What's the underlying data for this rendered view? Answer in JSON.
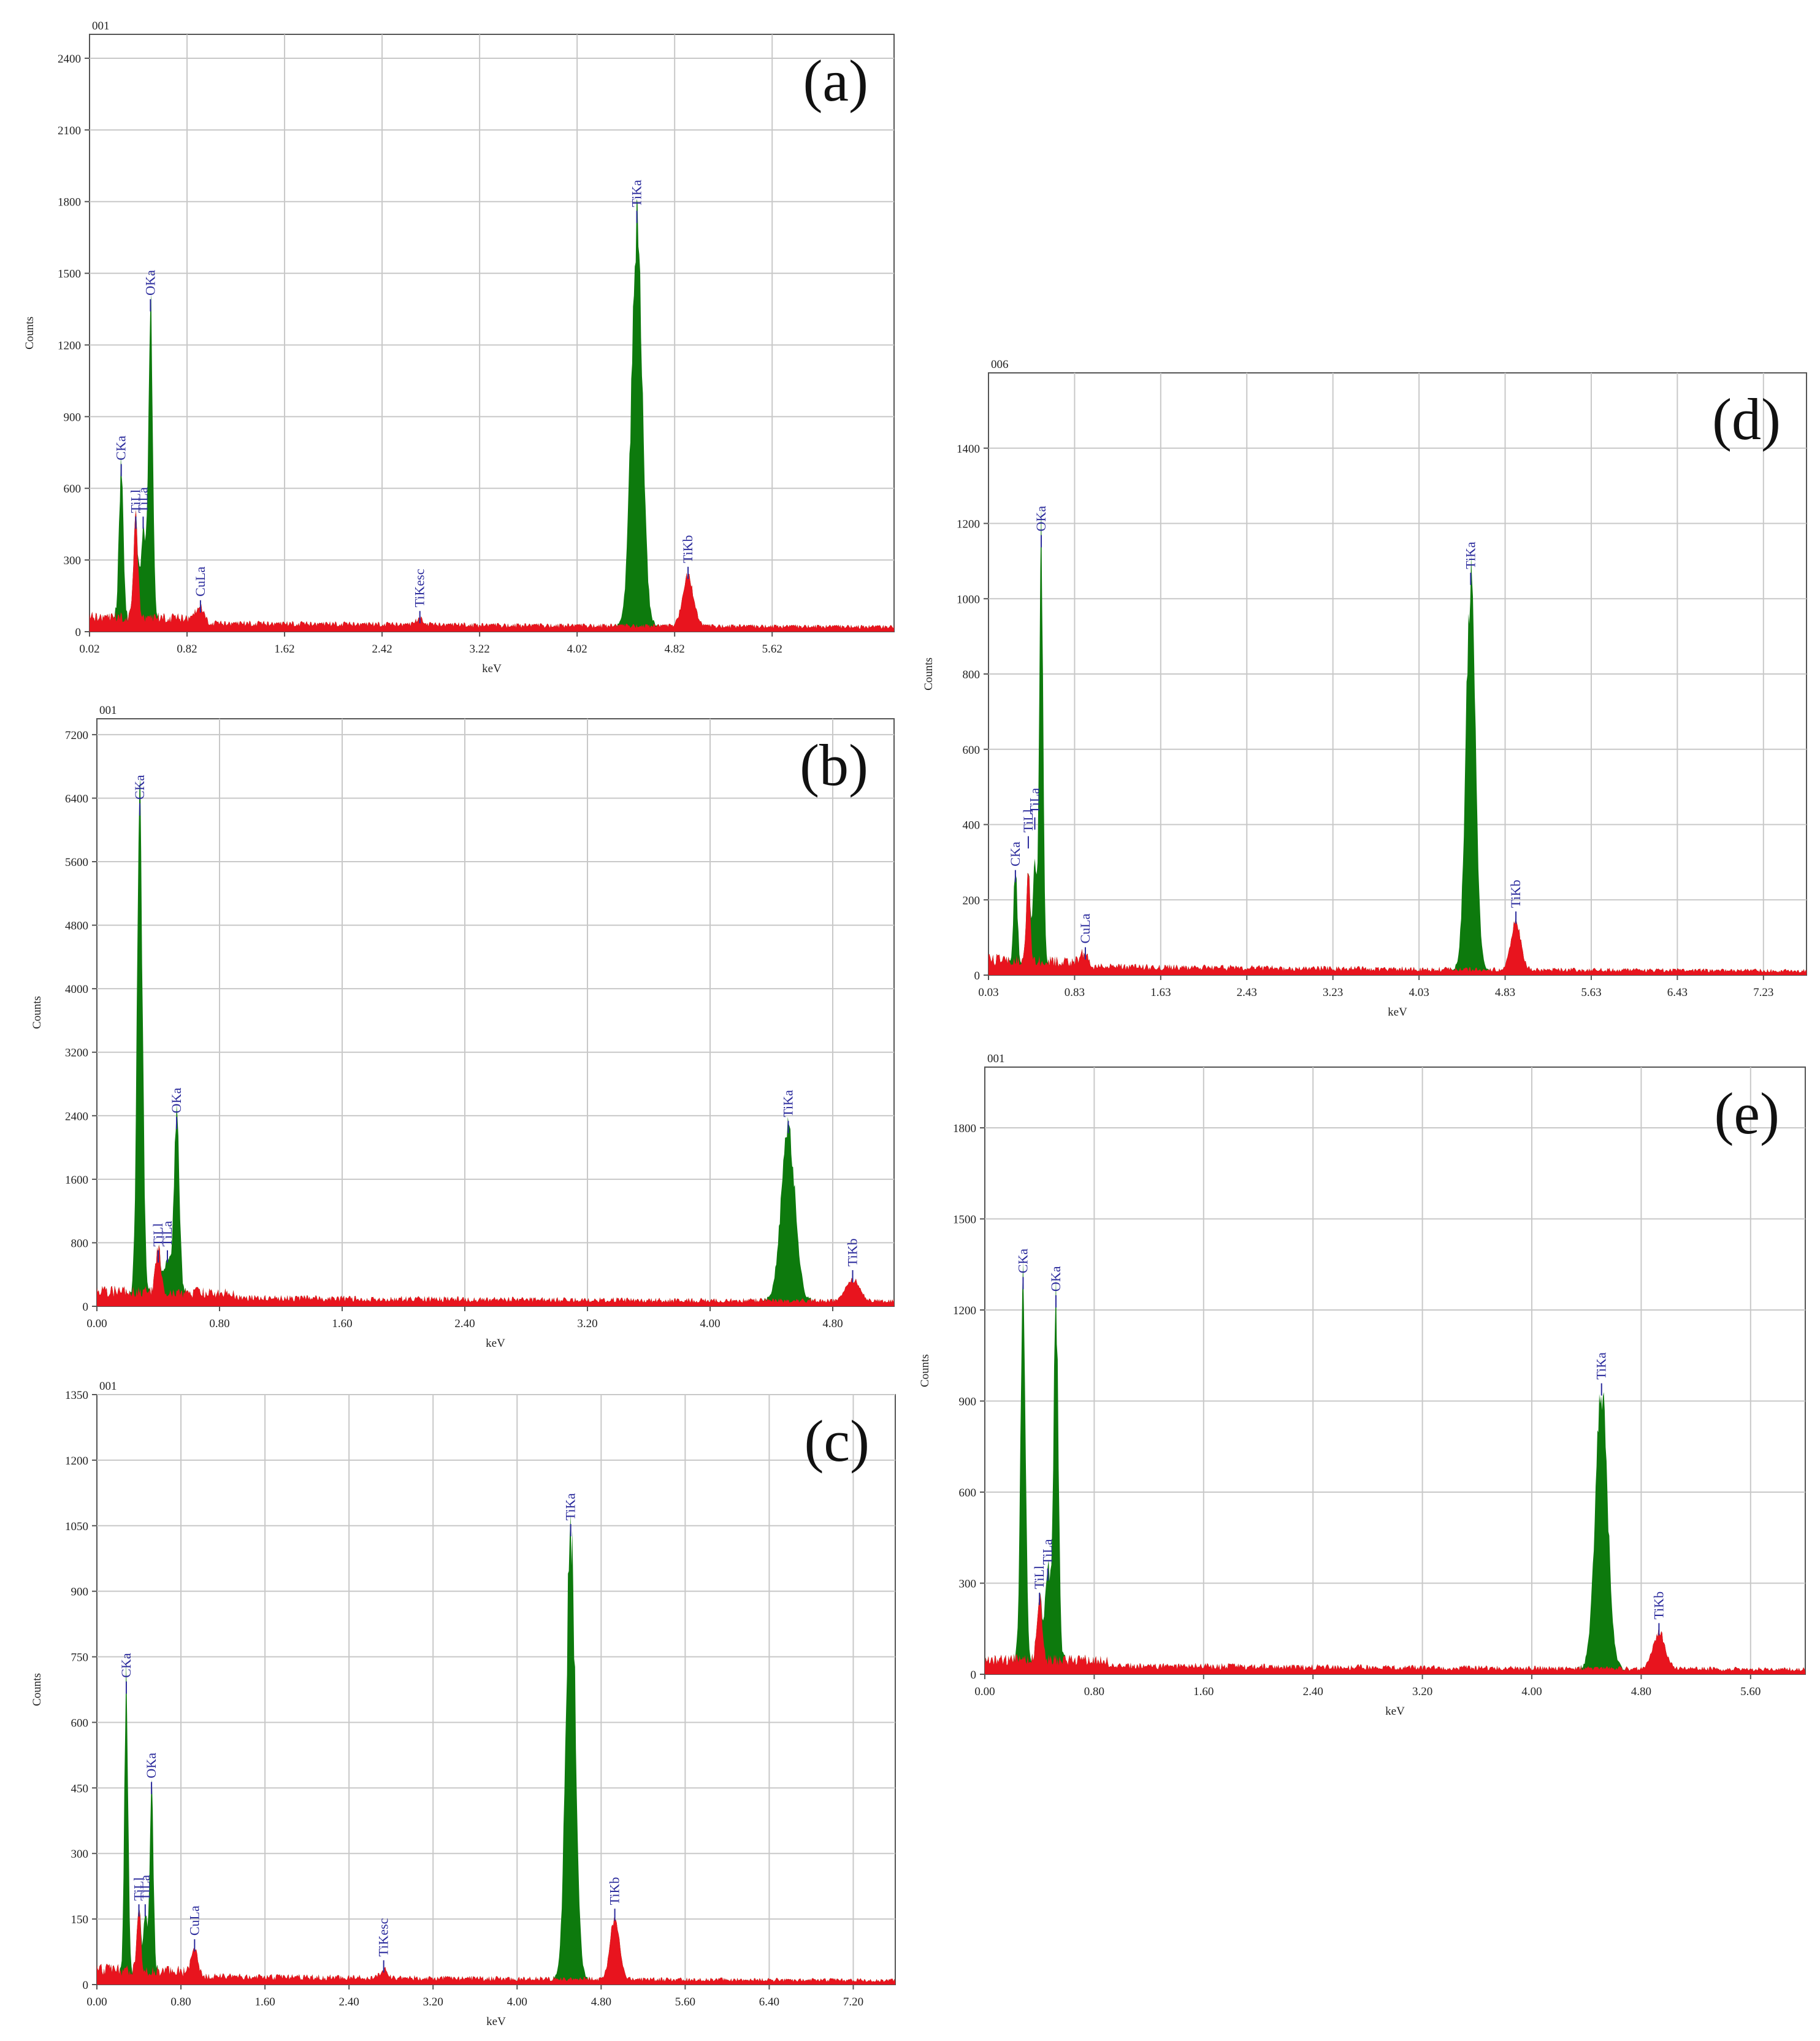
{
  "chart_data": [
    {
      "type": "line",
      "panel": "(a)",
      "file_id": "001",
      "xlabel": "keV",
      "ylabel": "Counts",
      "xlim": [
        0.02,
        6.62
      ],
      "xticks": [
        "0.02",
        "0.82",
        "1.62",
        "2.42",
        "3.22",
        "4.02",
        "4.82",
        "5.62"
      ],
      "ylim": [
        0,
        2500
      ],
      "yticks": [
        "0",
        "300",
        "600",
        "900",
        "1200",
        "1500",
        "1800",
        "2100",
        "2400"
      ],
      "grid": true,
      "peaks": [
        {
          "x": 0.28,
          "y": 640,
          "color": "green"
        },
        {
          "x": 0.4,
          "y": 420,
          "color": "red"
        },
        {
          "x": 0.46,
          "y": 380,
          "color": "green"
        },
        {
          "x": 0.52,
          "y": 1330,
          "color": "green"
        },
        {
          "x": 0.93,
          "y": 70,
          "color": "red"
        },
        {
          "x": 2.73,
          "y": 25,
          "color": "red"
        },
        {
          "x": 4.51,
          "y": 1700,
          "color": "green"
        },
        {
          "x": 4.93,
          "y": 210,
          "color": "red"
        }
      ],
      "annotations": [
        {
          "text": "CKa",
          "x": 0.28,
          "y": 640
        },
        {
          "text": "TiLl",
          "x": 0.4,
          "y": 420
        },
        {
          "text": "TiLa",
          "x": 0.46,
          "y": 420
        },
        {
          "text": "OKa",
          "x": 0.52,
          "y": 1330
        },
        {
          "text": "CuLa",
          "x": 0.93,
          "y": 70
        },
        {
          "text": "TiKesc",
          "x": 2.73,
          "y": 25
        },
        {
          "text": "TiKa",
          "x": 4.51,
          "y": 1700
        },
        {
          "text": "TiKb",
          "x": 4.93,
          "y": 210
        }
      ]
    },
    {
      "type": "line",
      "panel": "(b)",
      "file_id": "001",
      "xlabel": "keV",
      "ylabel": "Counts",
      "xlim": [
        0.0,
        5.2
      ],
      "xticks": [
        "0.00",
        "0.80",
        "1.60",
        "2.40",
        "3.20",
        "4.00",
        "4.80"
      ],
      "ylim": [
        0,
        7400
      ],
      "yticks": [
        "0",
        "800",
        "1600",
        "2400",
        "3200",
        "4000",
        "4800",
        "5600",
        "6400",
        "7200"
      ],
      "grid": true,
      "peaks": [
        {
          "x": 0.28,
          "y": 6150,
          "color": "green"
        },
        {
          "x": 0.4,
          "y": 520,
          "color": "red"
        },
        {
          "x": 0.46,
          "y": 480,
          "color": "green"
        },
        {
          "x": 0.52,
          "y": 2200,
          "color": "green"
        },
        {
          "x": 4.51,
          "y": 2150,
          "color": "green"
        },
        {
          "x": 4.93,
          "y": 270,
          "color": "red"
        }
      ],
      "annotations": [
        {
          "text": "CKa",
          "x": 0.28,
          "y": 6150
        },
        {
          "text": "TiLl",
          "x": 0.4,
          "y": 520
        },
        {
          "text": "TiLa",
          "x": 0.46,
          "y": 520
        },
        {
          "text": "OKa",
          "x": 0.52,
          "y": 2200
        },
        {
          "text": "TiKa",
          "x": 4.51,
          "y": 2150
        },
        {
          "text": "TiKb",
          "x": 4.93,
          "y": 270
        }
      ]
    },
    {
      "type": "line",
      "panel": "(c)",
      "file_id": "001",
      "xlabel": "keV",
      "ylabel": "Counts",
      "xlim": [
        0.0,
        7.6
      ],
      "xticks": [
        "0.00",
        "0.80",
        "1.60",
        "2.40",
        "3.20",
        "4.00",
        "4.80",
        "5.60",
        "6.40",
        "7.20"
      ],
      "ylim": [
        0,
        1350
      ],
      "yticks": [
        "0",
        "150",
        "300",
        "450",
        "600",
        "750",
        "900",
        "1050",
        "1200",
        "1350"
      ],
      "grid": true,
      "peaks": [
        {
          "x": 0.28,
          "y": 660,
          "color": "green"
        },
        {
          "x": 0.4,
          "y": 150,
          "color": "red"
        },
        {
          "x": 0.46,
          "y": 130,
          "color": "green"
        },
        {
          "x": 0.52,
          "y": 430,
          "color": "green"
        },
        {
          "x": 0.93,
          "y": 70,
          "color": "red"
        },
        {
          "x": 2.73,
          "y": 22,
          "color": "red"
        },
        {
          "x": 4.51,
          "y": 1020,
          "color": "green"
        },
        {
          "x": 4.93,
          "y": 140,
          "color": "red"
        }
      ],
      "annotations": [
        {
          "text": "CKa",
          "x": 0.28,
          "y": 660
        },
        {
          "text": "TiLl",
          "x": 0.4,
          "y": 150
        },
        {
          "text": "TiLa",
          "x": 0.46,
          "y": 150
        },
        {
          "text": "OKa",
          "x": 0.52,
          "y": 430
        },
        {
          "text": "CuLa",
          "x": 0.93,
          "y": 70
        },
        {
          "text": "TiKesc",
          "x": 2.73,
          "y": 22
        },
        {
          "text": "TiKa",
          "x": 4.51,
          "y": 1020
        },
        {
          "text": "TiKb",
          "x": 4.93,
          "y": 140
        }
      ]
    },
    {
      "type": "line",
      "panel": "(d)",
      "file_id": "006",
      "xlabel": "keV",
      "ylabel": "Counts",
      "xlim": [
        0.03,
        7.63
      ],
      "xticks": [
        "0.03",
        "0.83",
        "1.63",
        "2.43",
        "3.23",
        "4.03",
        "4.83",
        "5.63",
        "6.43",
        "7.23"
      ],
      "ylim": [
        0,
        1600
      ],
      "yticks": [
        "0",
        "200",
        "400",
        "600",
        "800",
        "1000",
        "1200",
        "1400"
      ],
      "grid": true,
      "peaks": [
        {
          "x": 0.28,
          "y": 240,
          "color": "green"
        },
        {
          "x": 0.4,
          "y": 230,
          "color": "red"
        },
        {
          "x": 0.46,
          "y": 250,
          "color": "green"
        },
        {
          "x": 0.52,
          "y": 1130,
          "color": "green"
        },
        {
          "x": 0.93,
          "y": 35,
          "color": "red"
        },
        {
          "x": 4.51,
          "y": 1030,
          "color": "green"
        },
        {
          "x": 4.93,
          "y": 130,
          "color": "red"
        }
      ],
      "annotations": [
        {
          "text": "CKa",
          "x": 0.28,
          "y": 240
        },
        {
          "text": "TiLl",
          "x": 0.4,
          "y": 330
        },
        {
          "text": "TiLa",
          "x": 0.46,
          "y": 380
        },
        {
          "text": "OKa",
          "x": 0.52,
          "y": 1130
        },
        {
          "text": "CuLa",
          "x": 0.93,
          "y": 35
        },
        {
          "text": "TiKa",
          "x": 4.51,
          "y": 1030
        },
        {
          "text": "TiKb",
          "x": 4.93,
          "y": 130
        }
      ]
    },
    {
      "type": "line",
      "panel": "(e)",
      "file_id": "001",
      "xlabel": "keV",
      "ylabel": "Counts",
      "xlim": [
        0.0,
        6.0
      ],
      "xticks": [
        "0.00",
        "0.80",
        "1.60",
        "2.40",
        "3.20",
        "4.00",
        "4.80",
        "5.60"
      ],
      "ylim": [
        0,
        2000
      ],
      "yticks": [
        "0",
        "300",
        "600",
        "900",
        "1200",
        "1500",
        "1800"
      ],
      "grid": true,
      "peaks": [
        {
          "x": 0.28,
          "y": 1260,
          "color": "green"
        },
        {
          "x": 0.4,
          "y": 220,
          "color": "red"
        },
        {
          "x": 0.46,
          "y": 300,
          "color": "green"
        },
        {
          "x": 0.52,
          "y": 1200,
          "color": "green"
        },
        {
          "x": 4.51,
          "y": 910,
          "color": "green"
        },
        {
          "x": 4.93,
          "y": 120,
          "color": "red"
        }
      ],
      "annotations": [
        {
          "text": "CKa",
          "x": 0.28,
          "y": 1260
        },
        {
          "text": "TiLl",
          "x": 0.4,
          "y": 220
        },
        {
          "text": "TiLa",
          "x": 0.46,
          "y": 300
        },
        {
          "text": "OKa",
          "x": 0.52,
          "y": 1200
        },
        {
          "text": "TiKa",
          "x": 4.51,
          "y": 910
        },
        {
          "text": "TiKb",
          "x": 4.93,
          "y": 120
        }
      ]
    }
  ],
  "colors": {
    "peak_fill": "#0d7a0d",
    "background_fill": "#e8141e",
    "annotation_text": "#2b2b9c",
    "grid": "#c8c8c8",
    "axis": "#555555"
  }
}
